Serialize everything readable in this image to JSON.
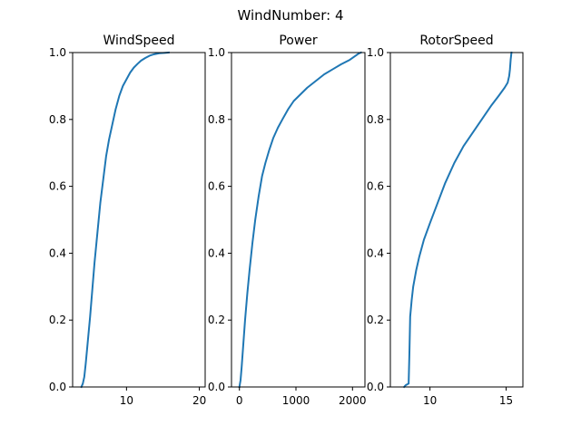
{
  "figure": {
    "suptitle": "WindNumber: 4"
  },
  "colors": {
    "line": "#1f77b4",
    "axes": "#000000",
    "background": "#ffffff"
  },
  "chart_data": [
    {
      "type": "line",
      "title": "WindSpeed",
      "xlabel": "",
      "ylabel": "",
      "xlim": [
        2.6,
        20.8
      ],
      "ylim": [
        0.0,
        1.0
      ],
      "xticks": [
        10,
        20
      ],
      "yticks": [
        0.0,
        0.2,
        0.4,
        0.6,
        0.8,
        1.0
      ],
      "grid": false,
      "series": [
        {
          "x": [
            3.8,
            4.0,
            4.2,
            4.4,
            4.7,
            5.0,
            5.3,
            5.6,
            6.0,
            6.4,
            6.8,
            7.2,
            7.6,
            8.0,
            8.5,
            9.0,
            9.5,
            10.0,
            10.5,
            11.0,
            11.5,
            12.0,
            12.6,
            13.2,
            13.8,
            14.5,
            15.2,
            15.8
          ],
          "y": [
            0.0,
            0.01,
            0.03,
            0.07,
            0.14,
            0.21,
            0.29,
            0.37,
            0.46,
            0.55,
            0.62,
            0.69,
            0.74,
            0.78,
            0.83,
            0.87,
            0.9,
            0.92,
            0.94,
            0.955,
            0.966,
            0.976,
            0.984,
            0.991,
            0.995,
            0.998,
            0.999,
            1.0
          ]
        }
      ]
    },
    {
      "type": "line",
      "title": "Power",
      "xlabel": "",
      "ylabel": "",
      "xlim": [
        -140,
        2220
      ],
      "ylim": [
        0.0,
        1.0
      ],
      "xticks": [
        0,
        1000,
        2000
      ],
      "yticks": [
        0.0,
        0.2,
        0.4,
        0.6,
        0.8,
        1.0
      ],
      "grid": false,
      "series": [
        {
          "x": [
            0,
            20,
            40,
            70,
            100,
            140,
            180,
            230,
            280,
            340,
            400,
            460,
            530,
            600,
            680,
            760,
            860,
            960,
            1080,
            1200,
            1350,
            1500,
            1650,
            1800,
            1950,
            2050,
            2110,
            2150
          ],
          "y": [
            0.0,
            0.02,
            0.06,
            0.13,
            0.2,
            0.28,
            0.35,
            0.43,
            0.5,
            0.57,
            0.63,
            0.67,
            0.71,
            0.745,
            0.775,
            0.8,
            0.83,
            0.855,
            0.875,
            0.895,
            0.915,
            0.935,
            0.95,
            0.965,
            0.978,
            0.99,
            0.997,
            1.0
          ]
        }
      ]
    },
    {
      "type": "line",
      "title": "RotorSpeed",
      "xlabel": "",
      "ylabel": "",
      "xlim": [
        7.4,
        16.1
      ],
      "ylim": [
        0.0,
        1.0
      ],
      "xticks": [
        10,
        15
      ],
      "yticks": [
        0.0,
        0.2,
        0.4,
        0.6,
        0.8,
        1.0
      ],
      "grid": false,
      "series": [
        {
          "x": [
            8.3,
            8.4,
            8.6,
            8.65,
            8.7,
            8.8,
            8.9,
            9.1,
            9.3,
            9.6,
            10.0,
            10.5,
            11.0,
            11.6,
            12.2,
            12.8,
            13.4,
            14.0,
            14.5,
            14.9,
            15.1,
            15.2,
            15.25,
            15.3,
            15.35
          ],
          "y": [
            0.0,
            0.005,
            0.01,
            0.1,
            0.21,
            0.26,
            0.3,
            0.35,
            0.39,
            0.44,
            0.49,
            0.55,
            0.61,
            0.67,
            0.72,
            0.76,
            0.8,
            0.84,
            0.87,
            0.895,
            0.91,
            0.93,
            0.95,
            0.98,
            1.0
          ]
        }
      ]
    }
  ]
}
